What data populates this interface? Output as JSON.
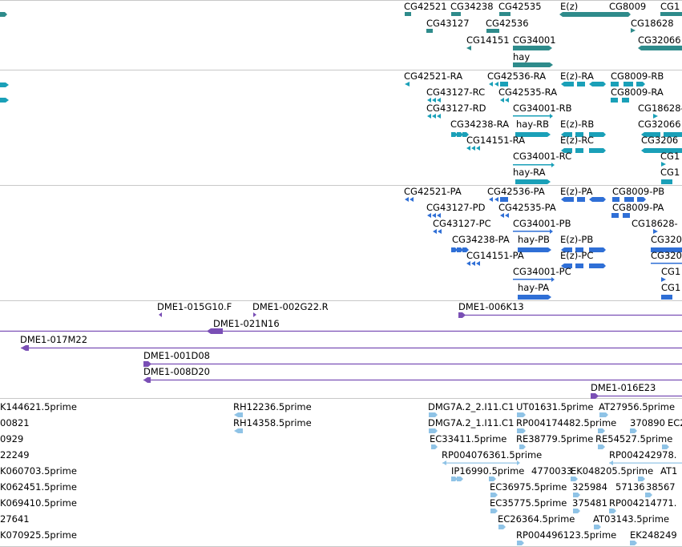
{
  "colors": {
    "gene": "#2e8b8b",
    "transcript": "#1aa0b8",
    "protein": "#2f6fd6",
    "clone": "#7a4fb5",
    "est": "#8fc3e6",
    "divider": "#c8c8c8"
  },
  "tracks": {
    "genes": {
      "labels": [
        {
          "text": "CG42521"
        },
        {
          "text": "CG34238"
        },
        {
          "text": "CG42535"
        },
        {
          "text": "E(z)"
        },
        {
          "text": "CG8009"
        },
        {
          "text": "CG1"
        },
        {
          "text": "CG43127"
        },
        {
          "text": "CG42536"
        },
        {
          "text": "CG18628"
        },
        {
          "text": "CG14151"
        },
        {
          "text": "CG34001"
        },
        {
          "text": "CG32066"
        },
        {
          "text": "hay"
        }
      ]
    },
    "transcripts": {
      "labels": [
        {
          "text": "CG42521-RA"
        },
        {
          "text": "CG42536-RA"
        },
        {
          "text": "E(z)-RA"
        },
        {
          "text": "CG8009-RB"
        },
        {
          "text": "CG43127-RC"
        },
        {
          "text": "CG42535-RA"
        },
        {
          "text": "CG8009-RA"
        },
        {
          "text": "CG43127-RD"
        },
        {
          "text": "CG34001-RB"
        },
        {
          "text": "CG18628-"
        },
        {
          "text": "CG34238-RA"
        },
        {
          "text": "hay-RB"
        },
        {
          "text": "E(z)-RB"
        },
        {
          "text": "CG32066"
        },
        {
          "text": "CG14151-RA"
        },
        {
          "text": "E(z)-RC"
        },
        {
          "text": "CG3206"
        },
        {
          "text": "CG34001-RC"
        },
        {
          "text": "CG1"
        },
        {
          "text": "hay-RA"
        },
        {
          "text": "CG1"
        }
      ]
    },
    "proteins": {
      "labels": [
        {
          "text": "CG42521-PA"
        },
        {
          "text": "CG42536-PA"
        },
        {
          "text": "E(z)-PA"
        },
        {
          "text": "CG8009-PB"
        },
        {
          "text": "CG43127-PD"
        },
        {
          "text": "CG42535-PA"
        },
        {
          "text": "CG8009-PA"
        },
        {
          "text": "CG43127-PC"
        },
        {
          "text": "CG34001-PB"
        },
        {
          "text": "CG18628-"
        },
        {
          "text": "CG34238-PA"
        },
        {
          "text": "hay-PB"
        },
        {
          "text": "E(z)-PB"
        },
        {
          "text": "CG320"
        },
        {
          "text": "CG14151-PA"
        },
        {
          "text": "E(z)-PC"
        },
        {
          "text": "CG320"
        },
        {
          "text": "CG34001-PC"
        },
        {
          "text": "CG1"
        },
        {
          "text": "hay-PA"
        },
        {
          "text": "CG1"
        }
      ]
    },
    "clones": {
      "labels": [
        {
          "text": "DME1-015G10.F"
        },
        {
          "text": "DME1-002G22.R"
        },
        {
          "text": "DME1-006K13"
        },
        {
          "text": "DME1-021N16"
        },
        {
          "text": "DME1-017M22"
        },
        {
          "text": "DME1-001D08"
        },
        {
          "text": "DME1-008D20"
        },
        {
          "text": "DME1-016E23"
        }
      ]
    },
    "ests": {
      "labels": [
        {
          "text": "K144621.5prime"
        },
        {
          "text": "RH12236.5prime"
        },
        {
          "text": "DMG7A.2_2.I11.C1"
        },
        {
          "text": "UT01631.5prime"
        },
        {
          "text": "AT27956.5prime"
        },
        {
          "text": "00821"
        },
        {
          "text": "RH14358.5prime"
        },
        {
          "text": "DMG7A.2_1.I11.C1"
        },
        {
          "text": "RP004174482.5prime"
        },
        {
          "text": "370890"
        },
        {
          "text": "EC2"
        },
        {
          "text": "0929"
        },
        {
          "text": "EC33411.5prime"
        },
        {
          "text": "RE38779.5prime"
        },
        {
          "text": "RE54527.5prime"
        },
        {
          "text": "22249"
        },
        {
          "text": "RP004076361.5prime"
        },
        {
          "text": "RP004242978."
        },
        {
          "text": "K060703.5prime"
        },
        {
          "text": "IP16990.5prime"
        },
        {
          "text": "4770033"
        },
        {
          "text": "EK048205.5prime"
        },
        {
          "text": "AT1"
        },
        {
          "text": "K062451.5prime"
        },
        {
          "text": "EC36975.5prime"
        },
        {
          "text": "325984"
        },
        {
          "text": "57136"
        },
        {
          "text": "38567"
        },
        {
          "text": "K069410.5prime"
        },
        {
          "text": "EC35775.5prime"
        },
        {
          "text": "375481"
        },
        {
          "text": "RP004214771."
        },
        {
          "text": "27641"
        },
        {
          "text": "EC26364.5prime"
        },
        {
          "text": "AT03143.5prime"
        },
        {
          "text": "K070925.5prime"
        },
        {
          "text": "RP004496123.5prime"
        },
        {
          "text": "EK248249"
        }
      ]
    }
  }
}
